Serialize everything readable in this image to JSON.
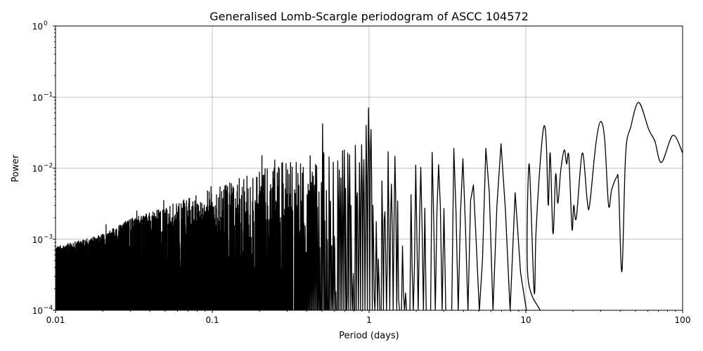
{
  "chart_data": {
    "type": "line",
    "title": "Generalised Lomb-Scargle periodogram of ASCC 104572",
    "xlabel": "Period (days)",
    "ylabel": "Power",
    "xscale": "log",
    "yscale": "log",
    "xlim": [
      0.01,
      100
    ],
    "ylim": [
      0.0001,
      1
    ],
    "grid": true,
    "x_ticks": [
      {
        "value": 0.01,
        "label": "0.01"
      },
      {
        "value": 0.1,
        "label": "0.1"
      },
      {
        "value": 1,
        "label": "1"
      },
      {
        "value": 10,
        "label": "10"
      },
      {
        "value": 100,
        "label": "100"
      }
    ],
    "y_ticks": [
      {
        "value": 0.0001,
        "base": "10",
        "exp": "−4"
      },
      {
        "value": 0.001,
        "base": "10",
        "exp": "−3"
      },
      {
        "value": 0.01,
        "base": "10",
        "exp": "−2"
      },
      {
        "value": 0.1,
        "base": "10",
        "exp": "−1"
      },
      {
        "value": 1,
        "base": "10",
        "exp": "0"
      }
    ],
    "series_color": "#000000",
    "noise_envelope": [
      [
        0.01,
        0.0006
      ],
      [
        0.02,
        0.0009
      ],
      [
        0.03,
        0.0015
      ],
      [
        0.05,
        0.0022
      ],
      [
        0.1,
        0.004
      ],
      [
        0.2,
        0.007
      ],
      [
        0.3,
        0.01
      ],
      [
        0.5,
        0.013
      ],
      [
        1,
        0.018
      ],
      [
        2,
        0.013
      ],
      [
        5,
        0.014
      ],
      [
        10.3,
        0.014
      ]
    ],
    "spikes": [
      [
        0.0102,
        0.00075
      ],
      [
        0.021,
        0.0016
      ],
      [
        0.033,
        0.0025
      ],
      [
        0.049,
        0.0035
      ],
      [
        0.098,
        0.0055
      ],
      [
        0.207,
        0.015
      ],
      [
        0.25,
        0.013
      ],
      [
        0.302,
        0.0095
      ],
      [
        0.502,
        0.042
      ],
      [
        0.7,
        0.018
      ],
      [
        0.958,
        0.04
      ],
      [
        0.995,
        0.07
      ],
      [
        1.03,
        0.035
      ],
      [
        1.3,
        0.017
      ],
      [
        2.0,
        0.011
      ],
      [
        3.5,
        0.019
      ],
      [
        5.5,
        0.019
      ],
      [
        7.5,
        0.022
      ]
    ],
    "smooth_points": [
      [
        10.3,
        0.0003
      ],
      [
        10.5,
        0.0115
      ],
      [
        11.3,
        0.00018
      ],
      [
        11.6,
        0.0012
      ],
      [
        12.3,
        0.0106
      ],
      [
        13.0,
        0.038
      ],
      [
        13.5,
        0.0235
      ],
      [
        13.9,
        0.003
      ],
      [
        14.3,
        0.0163
      ],
      [
        14.9,
        0.0012
      ],
      [
        15.5,
        0.0082
      ],
      [
        16.0,
        0.0032
      ],
      [
        16.7,
        0.0093
      ],
      [
        17.6,
        0.018
      ],
      [
        18.2,
        0.0115
      ],
      [
        18.8,
        0.0146
      ],
      [
        19.7,
        0.0014
      ],
      [
        20.2,
        0.003
      ],
      [
        21.0,
        0.002
      ],
      [
        22.9,
        0.0163
      ],
      [
        24.6,
        0.0036
      ],
      [
        25.5,
        0.003
      ],
      [
        27.9,
        0.021
      ],
      [
        29.9,
        0.045
      ],
      [
        31.8,
        0.026
      ],
      [
        33.7,
        0.003
      ],
      [
        35.3,
        0.005
      ],
      [
        37.9,
        0.0074
      ],
      [
        39,
        0.006
      ],
      [
        41.0,
        0.00035
      ],
      [
        43.3,
        0.0155
      ],
      [
        46.7,
        0.038
      ],
      [
        52.5,
        0.084
      ],
      [
        60.8,
        0.035
      ],
      [
        66.5,
        0.024
      ],
      [
        73.3,
        0.012
      ],
      [
        86.7,
        0.029
      ],
      [
        100,
        0.0163
      ]
    ]
  }
}
